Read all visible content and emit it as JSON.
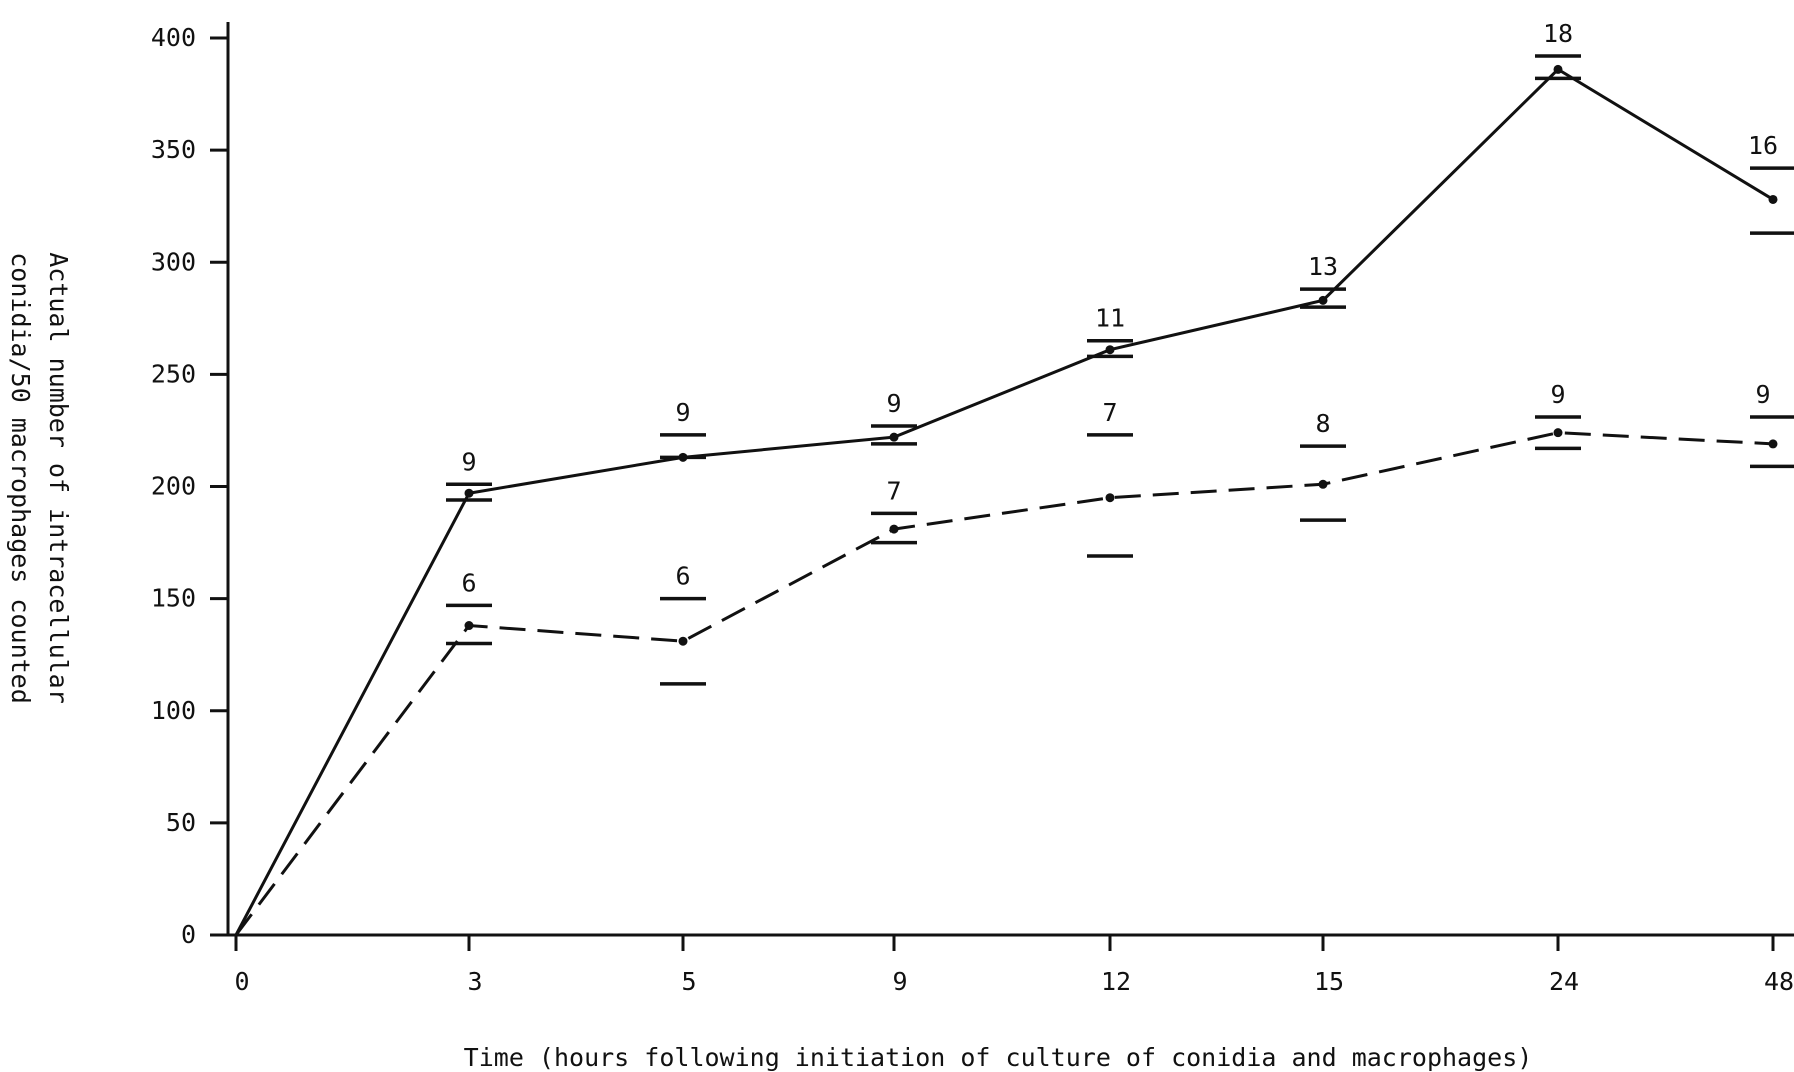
{
  "chart_data": {
    "type": "line",
    "xlabel": "Time (hours following initiation of culture of conidia and macrophages)",
    "ylabel_line1": "Actual number of intracellular",
    "ylabel_line2": "conidia/50 macrophages counted",
    "categories": [
      "0",
      "3",
      "5",
      "9",
      "12",
      "15",
      "24",
      "48"
    ],
    "yticks": [
      0,
      50,
      100,
      150,
      200,
      250,
      300,
      350,
      400
    ],
    "ylim": [
      0,
      400
    ],
    "grid": false,
    "series": [
      {
        "style": "solid",
        "values": [
          0,
          197,
          213,
          222,
          261,
          283,
          386,
          328
        ],
        "err_low": [
          0,
          194,
          213,
          219,
          258,
          280,
          382,
          313
        ],
        "err_high": [
          0,
          201,
          223,
          227,
          265,
          288,
          392,
          342
        ],
        "n": [
          "",
          "9",
          "9",
          "9",
          "11",
          "13",
          "18",
          "16"
        ]
      },
      {
        "style": "dashed",
        "values": [
          0,
          138,
          131,
          181,
          195,
          201,
          224,
          219
        ],
        "err_low": [
          0,
          130,
          112,
          175,
          169,
          185,
          217,
          209
        ],
        "err_high": [
          0,
          147,
          150,
          188,
          223,
          218,
          231,
          231
        ],
        "n": [
          "",
          "6",
          "6",
          "7",
          "7",
          "8",
          "9",
          "9"
        ]
      }
    ]
  }
}
